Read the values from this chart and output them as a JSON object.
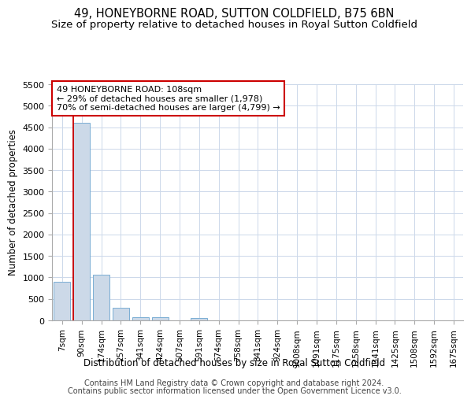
{
  "title": "49, HONEYBORNE ROAD, SUTTON COLDFIELD, B75 6BN",
  "subtitle": "Size of property relative to detached houses in Royal Sutton Coldfield",
  "xlabel": "Distribution of detached houses by size in Royal Sutton Coldfield",
  "ylabel": "Number of detached properties",
  "footer1": "Contains HM Land Registry data © Crown copyright and database right 2024.",
  "footer2": "Contains public sector information licensed under the Open Government Licence v3.0.",
  "categories": [
    "7sqm",
    "90sqm",
    "174sqm",
    "257sqm",
    "341sqm",
    "424sqm",
    "507sqm",
    "591sqm",
    "674sqm",
    "758sqm",
    "841sqm",
    "924sqm",
    "1008sqm",
    "1091sqm",
    "1175sqm",
    "1258sqm",
    "1341sqm",
    "1425sqm",
    "1508sqm",
    "1592sqm",
    "1675sqm"
  ],
  "values": [
    900,
    4600,
    1060,
    290,
    80,
    70,
    0,
    50,
    0,
    0,
    0,
    0,
    0,
    0,
    0,
    0,
    0,
    0,
    0,
    0,
    0
  ],
  "bar_color": "#ccd9e8",
  "bar_edge_color": "#7aaed4",
  "highlight_line_color": "#cc0000",
  "annotation_line1": "49 HONEYBORNE ROAD: 108sqm",
  "annotation_line2": "← 29% of detached houses are smaller (1,978)",
  "annotation_line3": "70% of semi-detached houses are larger (4,799) →",
  "annotation_box_color": "#ffffff",
  "annotation_box_edge_color": "#cc0000",
  "ylim_max": 5500,
  "yticks": [
    0,
    500,
    1000,
    1500,
    2000,
    2500,
    3000,
    3500,
    4000,
    4500,
    5000,
    5500
  ],
  "title_fontsize": 10.5,
  "subtitle_fontsize": 9.5,
  "ylabel_fontsize": 8.5,
  "xlabel_fontsize": 8.5,
  "tick_fontsize": 8,
  "footer_fontsize": 7,
  "annotation_fontsize": 8,
  "background_color": "#ffffff",
  "grid_color": "#ccd8ea"
}
